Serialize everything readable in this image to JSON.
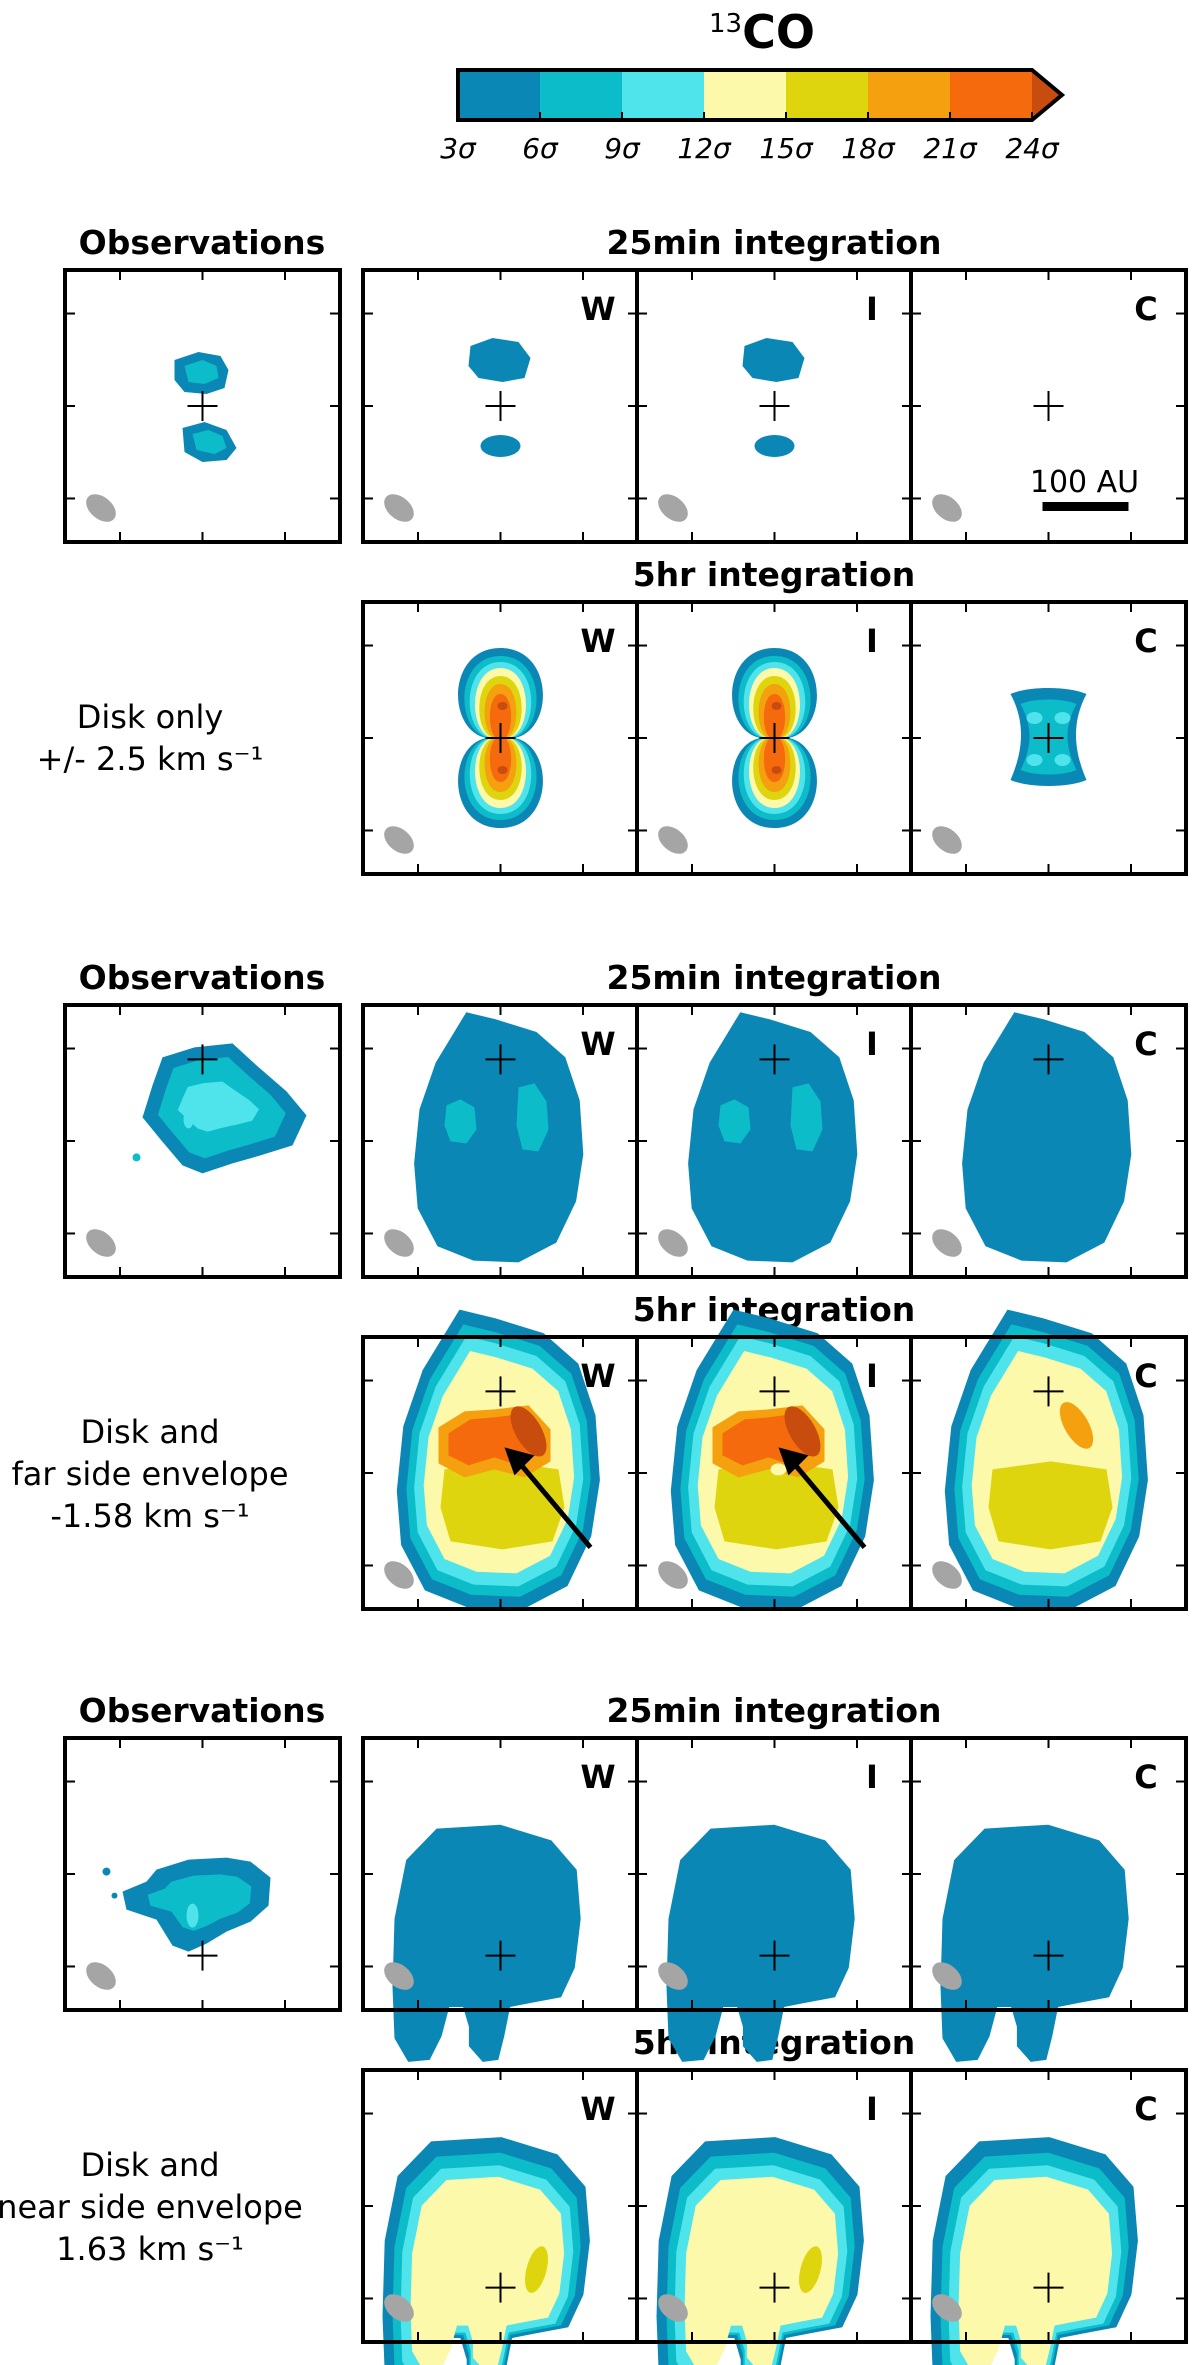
{
  "title": {
    "pre": "13",
    "main": "CO"
  },
  "colorbar": {
    "colors": [
      "#0b87b6",
      "#0cbcc9",
      "#4fe3ec",
      "#fdf9aa",
      "#dfd50f",
      "#f4a00f",
      "#f56a0c",
      "#c74c0d"
    ],
    "ticks": [
      "3σ",
      "6σ",
      "9σ",
      "12σ",
      "15σ",
      "18σ",
      "21σ",
      "24σ"
    ]
  },
  "beam_color": "#a5a5a5",
  "scalebar_label": "100 AU",
  "groups": [
    {
      "obs_title": "Observations",
      "short_title": "25min integration",
      "long_title": "5hr integration",
      "side_label": [
        "Disk only",
        "+/- 2.5 km s⁻¹"
      ],
      "short_levels": [
        0,
        0,
        0
      ],
      "long_levels": [
        7,
        7,
        2
      ],
      "obs_levels": 2,
      "morph": "disk"
    },
    {
      "obs_title": "Observations",
      "short_title": "25min integration",
      "long_title": "5hr integration",
      "side_label": [
        "Disk and",
        "far side envelope",
        "-1.58 km s⁻¹"
      ],
      "short_levels": [
        1,
        1,
        0
      ],
      "long_levels": [
        7,
        7,
        5
      ],
      "obs_levels": 3,
      "morph": "far"
    },
    {
      "obs_title": "Observations",
      "short_title": "25min integration",
      "long_title": "5hr integration",
      "side_label": [
        "Disk and",
        "near side envelope",
        "1.63 km s⁻¹"
      ],
      "short_levels": [
        0,
        0,
        0
      ],
      "long_levels": [
        5,
        5,
        4
      ],
      "obs_levels": 2,
      "morph": "near"
    }
  ],
  "panel_letters": [
    "W",
    "I",
    "C"
  ]
}
